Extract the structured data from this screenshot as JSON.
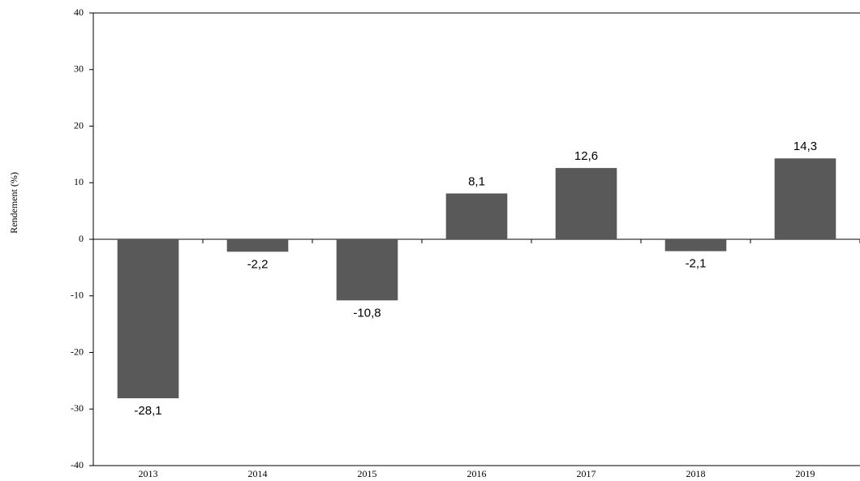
{
  "chart_data": {
    "type": "bar",
    "y_label": "Rendement (%)",
    "categories": [
      "2013",
      "2014",
      "2015",
      "2016",
      "2017",
      "2018",
      "2019"
    ],
    "values": [
      -28.1,
      -2.2,
      -10.8,
      8.1,
      12.6,
      -2.1,
      14.3
    ],
    "value_labels": [
      "-28,1",
      "-2,2",
      "-10,8",
      "8,1",
      "12,6",
      "-2,1",
      "14,3"
    ],
    "color": "#595959",
    "ylim": [
      -40,
      40
    ],
    "yticks": [
      -40,
      -30,
      -20,
      -10,
      0,
      10,
      20,
      30,
      40
    ],
    "grid": false
  }
}
